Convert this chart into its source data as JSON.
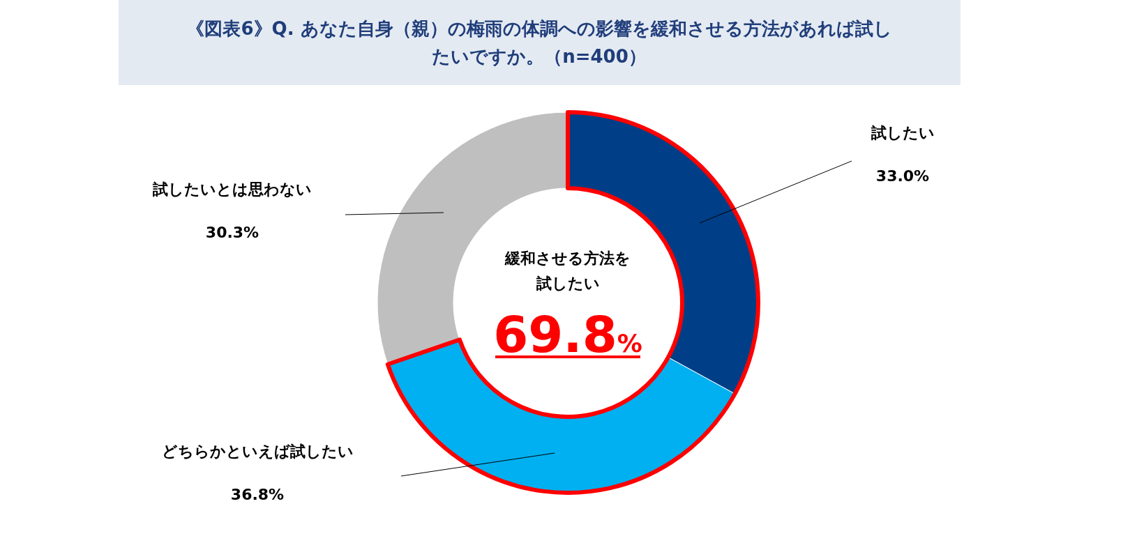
{
  "chart_data": {
    "type": "donut",
    "title": "《図表6》Q. あなた自身（親）の梅雨の体調への影響を緩和させる方法があれば試したいですか。（n=400）",
    "categories": [
      "試したい",
      "どちらかといえば試したい",
      "試したいとは思わない"
    ],
    "values": [
      33.0,
      36.8,
      30.3
    ],
    "colors": [
      "#003f87",
      "#00b0f0",
      "#bfbfbf"
    ],
    "value_labels": [
      "33.0%",
      "36.8%",
      "30.3%"
    ],
    "annotations": [
      "緩和させる方法を",
      "試したい",
      "69.8%"
    ]
  }
}
